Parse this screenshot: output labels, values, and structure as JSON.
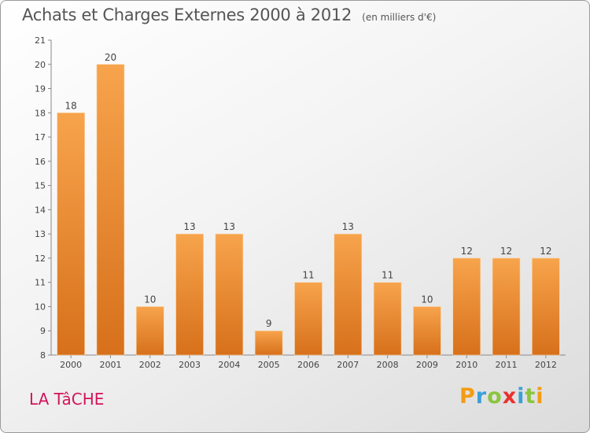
{
  "header": {
    "title": "Achats et Charges Externes 2000 à 2012",
    "unit": "(en milliers d'€)"
  },
  "commune": "LA TâCHE",
  "logo": {
    "text": "Proxiti",
    "letters": [
      "P",
      "r",
      "o",
      "x",
      "i",
      "t",
      "i"
    ]
  },
  "colors": {
    "bar_top": "#f7a44c",
    "bar_bottom": "#d7701b",
    "label": "#444444",
    "commune": "#d4145a"
  },
  "chart_data": {
    "type": "bar",
    "title": "Achats et Charges Externes 2000 à 2012",
    "subtitle": "(en milliers d'€)",
    "categories": [
      "2000",
      "2001",
      "2002",
      "2003",
      "2004",
      "2005",
      "2006",
      "2007",
      "2008",
      "2009",
      "2010",
      "2011",
      "2012"
    ],
    "values": [
      18,
      20,
      10,
      13,
      13,
      9,
      11,
      13,
      11,
      10,
      12,
      12,
      12
    ],
    "ylim": [
      8,
      21
    ],
    "yticks": [
      8,
      9,
      10,
      11,
      12,
      13,
      14,
      15,
      16,
      17,
      18,
      19,
      20,
      21
    ],
    "grid": false,
    "legend": false,
    "data_labels": true
  }
}
